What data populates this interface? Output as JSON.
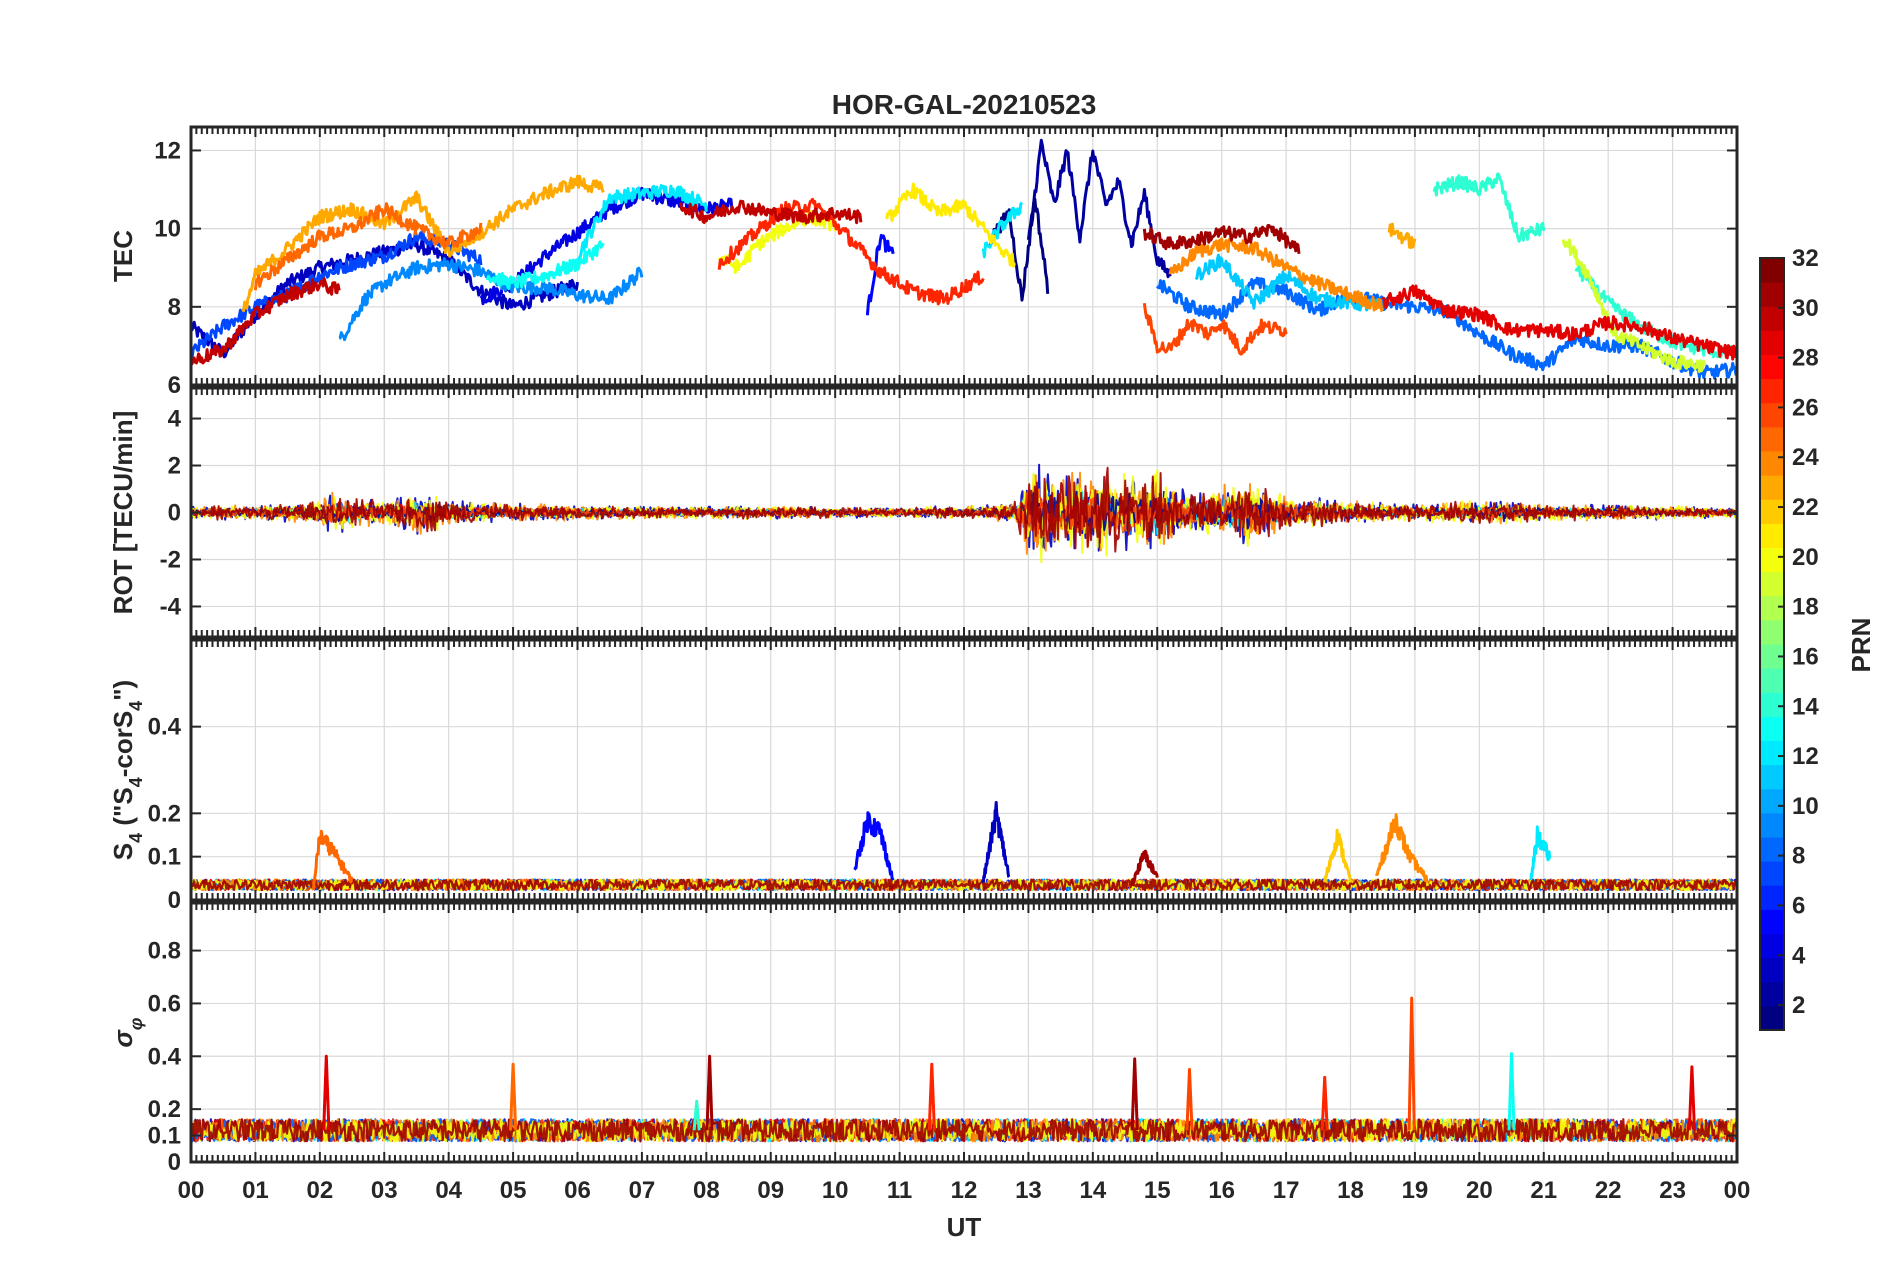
{
  "chart_data": {
    "type": "line",
    "title": "HOR-GAL-20210523",
    "xlabel": "UT",
    "x_tick_labels": [
      "00",
      "01",
      "02",
      "03",
      "04",
      "05",
      "06",
      "07",
      "08",
      "09",
      "10",
      "11",
      "12",
      "13",
      "14",
      "15",
      "16",
      "17",
      "18",
      "19",
      "20",
      "21",
      "22",
      "23",
      "00"
    ],
    "xlim": [
      0,
      24
    ],
    "grid": true,
    "panels": [
      {
        "ylabel": "TEC",
        "ylim": [
          6,
          12.6
        ],
        "yticks": [
          6,
          8,
          10,
          12
        ],
        "series": [
          {
            "prn": 3,
            "x": [
              0,
              0.5,
              1,
              1.5,
              2,
              2.5,
              3,
              3.5,
              4,
              4.5,
              5,
              5.5,
              6
            ],
            "y": [
              7.5,
              6.8,
              7.8,
              8.6,
              9.0,
              9.2,
              9.4,
              9.6,
              9.2,
              8.4,
              8.0,
              8.3,
              8.6
            ]
          },
          {
            "prn": 4,
            "x": [
              4.5,
              5,
              5.5,
              6,
              6.5,
              7,
              7.5,
              8,
              8.4
            ],
            "y": [
              8.2,
              8.6,
              9.3,
              9.9,
              10.5,
              10.9,
              10.7,
              10.5,
              10.6
            ]
          },
          {
            "prn": 7,
            "x": [
              0,
              0.5,
              1,
              1.5,
              2,
              2.5,
              3,
              3.5,
              4,
              4.5
            ],
            "y": [
              6.8,
              7.5,
              8.0,
              8.3,
              8.8,
              9.1,
              9.3,
              9.8,
              9.6,
              9.2
            ]
          },
          {
            "prn": 9,
            "x": [
              2.3,
              2.7,
              3,
              3.5,
              4,
              4.5,
              5,
              5.5,
              6,
              6.5,
              7
            ],
            "y": [
              7.1,
              8.2,
              8.6,
              9.0,
              9.1,
              8.9,
              8.5,
              8.5,
              8.3,
              8.2,
              8.9
            ]
          },
          {
            "prn": 12,
            "x": [
              6,
              6.5,
              7,
              7.5,
              8
            ],
            "y": [
              9.3,
              10.8,
              10.9,
              11.0,
              10.6
            ]
          },
          {
            "prn": 13,
            "x": [
              4.6,
              5,
              5.5,
              6,
              6.4
            ],
            "y": [
              8.8,
              8.6,
              8.8,
              9.1,
              9.6
            ]
          },
          {
            "prn": 2,
            "x": [
              13,
              13.2,
              13.4,
              13.6,
              13.8,
              14,
              14.2,
              14.4,
              14.6,
              14.8,
              15,
              15.2
            ],
            "y": [
              9.6,
              12.2,
              10.6,
              12.0,
              9.8,
              12.0,
              10.6,
              11.2,
              9.6,
              10.9,
              9.2,
              8.8
            ]
          },
          {
            "prn": 1,
            "x": [
              12.4,
              12.7,
              12.9,
              13.1,
              13.3
            ],
            "y": [
              9.7,
              10.4,
              8.2,
              10.8,
              8.5
            ]
          },
          {
            "prn": 5,
            "x": [
              10.5,
              10.7,
              10.9
            ],
            "y": [
              7.8,
              9.8,
              9.3
            ]
          },
          {
            "prn": 8,
            "x": [
              15,
              15.5,
              16,
              16.5,
              17,
              17.5,
              18,
              18.5,
              19,
              19.5,
              20,
              20.5,
              21,
              21.5,
              22,
              22.5,
              23,
              23.5,
              24
            ],
            "y": [
              8.6,
              8.0,
              7.8,
              8.6,
              8.4,
              7.9,
              8.3,
              8.1,
              8.0,
              7.9,
              7.3,
              6.8,
              6.5,
              7.2,
              7.0,
              7.0,
              6.6,
              6.3,
              6.4
            ]
          },
          {
            "prn": 11,
            "x": [
              15.6,
              16,
              16.5,
              17,
              17.5,
              18,
              18.5
            ],
            "y": [
              8.8,
              9.2,
              8.1,
              8.8,
              8.2,
              8.1,
              8.0
            ]
          },
          {
            "prn": 14,
            "x": [
              19.3,
              19.7,
              20,
              20.3,
              20.6,
              21
            ],
            "y": [
              11.0,
              11.2,
              11.0,
              11.3,
              9.8,
              10.0
            ]
          },
          {
            "prn": 14,
            "x": [
              21.5,
              22,
              22.5,
              23,
              23.5,
              24
            ],
            "y": [
              9.0,
              8.1,
              7.5,
              7.1,
              6.9,
              6.8
            ]
          },
          {
            "prn": 12,
            "x": [
              12.3,
              12.6,
              12.9
            ],
            "y": [
              9.4,
              10.1,
              10.6
            ]
          },
          {
            "prn": 20,
            "x": [
              8.2,
              8.5,
              8.8,
              9.2,
              9.6,
              10
            ],
            "y": [
              9.3,
              9.0,
              9.6,
              10.0,
              10.3,
              10.1
            ]
          },
          {
            "prn": 21,
            "x": [
              10.8,
              11.2,
              11.6,
              12,
              12.5,
              12.8
            ],
            "y": [
              10.2,
              11.0,
              10.4,
              10.6,
              9.6,
              9.1
            ]
          },
          {
            "prn": 19,
            "x": [
              21.3,
              21.7,
              22.1,
              22.5,
              23,
              23.5
            ],
            "y": [
              9.8,
              8.8,
              7.3,
              7.0,
              6.6,
              6.5
            ]
          },
          {
            "prn": 23,
            "x": [
              0.8,
              1,
              1.5,
              2,
              2.5,
              3,
              3.5,
              4,
              4.5,
              5,
              5.5,
              6,
              6.4
            ],
            "y": [
              7.8,
              8.8,
              9.5,
              10.3,
              10.5,
              10.1,
              10.8,
              9.4,
              9.9,
              10.5,
              10.9,
              11.2,
              11.0
            ]
          },
          {
            "prn": 25,
            "x": [
              1,
              1.5,
              2,
              2.5,
              3,
              3.5,
              4,
              4.5
            ],
            "y": [
              8.6,
              9.2,
              9.8,
              10.0,
              10.5,
              10.0,
              9.6,
              10.0
            ]
          },
          {
            "prn": 24,
            "x": [
              15.2,
              15.6,
              16,
              16.5,
              17,
              17.5,
              18,
              18.5
            ],
            "y": [
              8.8,
              9.4,
              9.6,
              9.5,
              9.0,
              8.6,
              8.3,
              8.0
            ]
          },
          {
            "prn": 23,
            "x": [
              18.6,
              18.8,
              19
            ],
            "y": [
              10.0,
              9.8,
              9.6
            ]
          },
          {
            "prn": 26,
            "x": [
              14.8,
              15,
              15.2,
              15.5,
              15.8,
              16,
              16.3,
              16.6,
              17
            ],
            "y": [
              8.0,
              7.0,
              6.9,
              7.6,
              7.3,
              7.6,
              6.9,
              7.5,
              7.4
            ]
          },
          {
            "prn": 27,
            "x": [
              8.2,
              8.7,
              9.2,
              9.7,
              10.2,
              10.7,
              11.2,
              11.7,
              12.3
            ],
            "y": [
              9.1,
              9.8,
              10.5,
              10.6,
              9.8,
              8.9,
              8.4,
              8.2,
              8.8
            ]
          },
          {
            "prn": 30,
            "x": [
              0,
              0.5,
              1,
              1.5,
              2,
              2.3
            ],
            "y": [
              6.6,
              6.9,
              7.8,
              8.3,
              8.6,
              8.4
            ]
          },
          {
            "prn": 30,
            "x": [
              7.6,
              8,
              8.5,
              9,
              9.5,
              10,
              10.4
            ],
            "y": [
              10.6,
              10.3,
              10.6,
              10.4,
              10.3,
              10.4,
              10.3
            ]
          },
          {
            "prn": 31,
            "x": [
              14.8,
              15.2,
              15.6,
              16,
              16.4,
              16.8,
              17.2
            ],
            "y": [
              9.9,
              9.6,
              9.7,
              9.9,
              9.8,
              10.0,
              9.4
            ]
          },
          {
            "prn": 29,
            "x": [
              18.5,
              19,
              19.5,
              20,
              20.5,
              21,
              21.5,
              22,
              22.5,
              23,
              23.5,
              24
            ],
            "y": [
              8.1,
              8.4,
              7.9,
              7.8,
              7.4,
              7.4,
              7.3,
              7.6,
              7.5,
              7.2,
              7.0,
              6.8
            ]
          }
        ]
      },
      {
        "ylabel": "ROT [TECU/min]",
        "ylim": [
          -5.3,
          5.3
        ],
        "yticks": [
          -4,
          -2,
          0,
          2,
          4
        ],
        "envelope": [
          {
            "prn": 27,
            "x": [
              0,
              1,
              2,
              2.2,
              3,
              3.6,
              4,
              5,
              6,
              7,
              8,
              9,
              10,
              11,
              12,
              12.8,
              13,
              13.2,
              13.4,
              13.6,
              13.8,
              14,
              14.2,
              14.4,
              14.6,
              14.8,
              15,
              15.2,
              15.5,
              16,
              16.5,
              17,
              18,
              19,
              19.5,
              20,
              20.5,
              21,
              22,
              23,
              24
            ],
            "amp": [
              0.3,
              0.35,
              0.5,
              1.0,
              0.5,
              1.1,
              0.6,
              0.4,
              0.35,
              0.3,
              0.3,
              0.3,
              0.25,
              0.25,
              0.3,
              0.5,
              2.0,
              2.4,
              1.8,
              1.6,
              2.6,
              1.9,
              2.2,
              1.8,
              2.0,
              1.6,
              2.1,
              1.4,
              1.0,
              1.2,
              1.6,
              0.8,
              0.5,
              0.4,
              0.5,
              0.6,
              0.5,
              0.4,
              0.35,
              0.3,
              0.2
            ]
          }
        ]
      },
      {
        "ylabel": "S_4 (\"S_4-corS_4\")",
        "ylim": [
          0,
          0.6
        ],
        "yticks": [
          0,
          0.1,
          0.2,
          0.4
        ],
        "baseline": 0.035,
        "spikes": [
          {
            "prn": 25,
            "x": [
              1.9,
              2.0,
              2.2,
              2.5
            ],
            "y": [
              0.03,
              0.17,
              0.13,
              0.05
            ]
          },
          {
            "prn": 5,
            "x": [
              10.3,
              10.5,
              10.7,
              10.9
            ],
            "y": [
              0.08,
              0.21,
              0.18,
              0.05
            ]
          },
          {
            "prn": 3,
            "x": [
              12.3,
              12.5,
              12.7
            ],
            "y": [
              0.05,
              0.23,
              0.06
            ]
          },
          {
            "prn": 24,
            "x": [
              18.4,
              18.7,
              18.9,
              19.2
            ],
            "y": [
              0.06,
              0.21,
              0.12,
              0.05
            ]
          },
          {
            "prn": 22,
            "x": [
              17.6,
              17.8,
              18.0
            ],
            "y": [
              0.05,
              0.17,
              0.05
            ]
          },
          {
            "prn": 12,
            "x": [
              20.8,
              20.9,
              21.1
            ],
            "y": [
              0.05,
              0.17,
              0.11
            ]
          },
          {
            "prn": 31,
            "x": [
              14.6,
              14.8,
              15.0
            ],
            "y": [
              0.04,
              0.12,
              0.06
            ]
          }
        ]
      },
      {
        "ylabel": "σ_φ",
        "ylim": [
          0,
          0.98
        ],
        "yticks": [
          0,
          0.1,
          0.2,
          0.4,
          0.6,
          0.8
        ],
        "baseline": 0.12,
        "spikes": [
          {
            "prn": 29,
            "x": [
              2.1
            ],
            "y": [
              0.4
            ]
          },
          {
            "prn": 25,
            "x": [
              5.0
            ],
            "y": [
              0.37
            ]
          },
          {
            "prn": 31,
            "x": [
              8.05
            ],
            "y": [
              0.4
            ]
          },
          {
            "prn": 27,
            "x": [
              11.5
            ],
            "y": [
              0.37
            ]
          },
          {
            "prn": 31,
            "x": [
              14.65
            ],
            "y": [
              0.39
            ]
          },
          {
            "prn": 26,
            "x": [
              15.5
            ],
            "y": [
              0.35
            ]
          },
          {
            "prn": 27,
            "x": [
              17.6
            ],
            "y": [
              0.32
            ]
          },
          {
            "prn": 26,
            "x": [
              18.95
            ],
            "y": [
              0.62
            ]
          },
          {
            "prn": 13,
            "x": [
              20.5
            ],
            "y": [
              0.41
            ]
          },
          {
            "prn": 29,
            "x": [
              23.3
            ],
            "y": [
              0.36
            ]
          },
          {
            "prn": 14,
            "x": [
              7.85
            ],
            "y": [
              0.23
            ]
          }
        ]
      }
    ],
    "colorbar": {
      "label": "PRN",
      "range": [
        1,
        32
      ],
      "tick_labels": [
        "2",
        "4",
        "6",
        "8",
        "10",
        "12",
        "14",
        "16",
        "18",
        "20",
        "22",
        "24",
        "26",
        "28",
        "30",
        "32"
      ],
      "colormap": "jet"
    }
  }
}
